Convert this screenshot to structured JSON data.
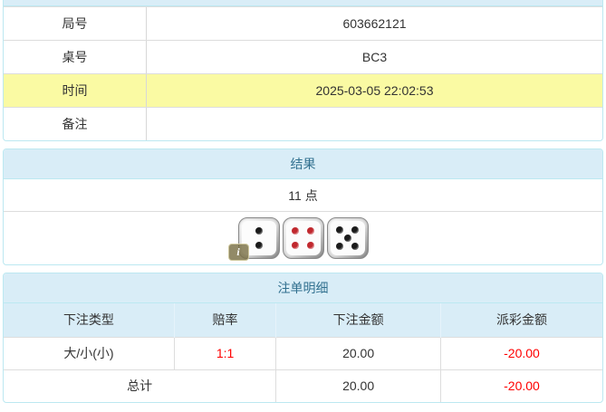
{
  "info_table": {
    "rows": [
      {
        "label": "局号",
        "value": "603662121",
        "highlight": false
      },
      {
        "label": "桌号",
        "value": "BC3",
        "highlight": false
      },
      {
        "label": "时间",
        "value": "2025-03-05 22:02:53",
        "highlight": true
      },
      {
        "label": "备注",
        "value": "",
        "highlight": false
      }
    ]
  },
  "result_panel": {
    "title": "结果",
    "points_text": "11 点",
    "dice": [
      {
        "value": 2,
        "color": "black"
      },
      {
        "value": 4,
        "color": "red"
      },
      {
        "value": 5,
        "color": "black"
      }
    ],
    "info_badge_label": "i"
  },
  "bets_panel": {
    "title": "注单明细",
    "columns": [
      "下注类型",
      "赔率",
      "下注金额",
      "派彩金额"
    ],
    "rows": [
      {
        "bet_type": "大/小(小)",
        "odds": "1:1",
        "bet_amount": "20.00",
        "payout": "-20.00"
      }
    ],
    "total": {
      "label": "总计",
      "bet_amount": "20.00",
      "payout": "-20.00"
    }
  },
  "colors": {
    "panel_border": "#bce8f1",
    "panel_header_bg": "#d9edf7",
    "panel_header_text": "#31708f",
    "row_border": "#dddddd",
    "highlight_yellow": "#fafaa3",
    "negative_red": "#ff0000",
    "body_text": "#333333"
  }
}
